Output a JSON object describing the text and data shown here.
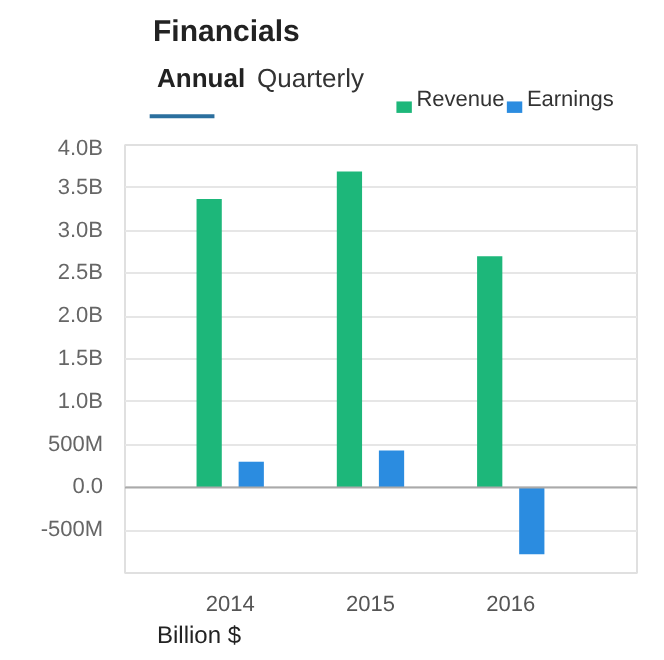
{
  "chart_data": {
    "type": "bar",
    "title": "Financials",
    "annotations": [
      "Annual",
      "Quarterly",
      "Billion $"
    ],
    "categories": [
      "2014",
      "2015",
      "2016"
    ],
    "series": [
      {
        "name": "Revenue",
        "color": "#1db77a",
        "values": [
          3370000000,
          3690000000,
          2700000000
        ]
      },
      {
        "name": "Earnings",
        "color": "#2b8ce0",
        "values": [
          300000000,
          430000000,
          -780000000
        ]
      }
    ],
    "ylim": [
      -1000000000,
      4000000000
    ],
    "yticks": [
      {
        "value": -1000000000,
        "label": null
      },
      {
        "value": -500000000,
        "label": "-500M"
      },
      {
        "value": 0,
        "label": "0.0"
      },
      {
        "value": 500000000,
        "label": "500M"
      },
      {
        "value": 1000000000,
        "label": "1.0B"
      },
      {
        "value": 1500000000,
        "label": "1.5B"
      },
      {
        "value": 2000000000,
        "label": "2.0B"
      },
      {
        "value": 2500000000,
        "label": "2.5B"
      },
      {
        "value": 3000000000,
        "label": "3.0B"
      },
      {
        "value": 3500000000,
        "label": "3.5B"
      },
      {
        "value": 4000000000,
        "label": "4.0B"
      }
    ],
    "grid": "y",
    "legend": "top right"
  }
}
